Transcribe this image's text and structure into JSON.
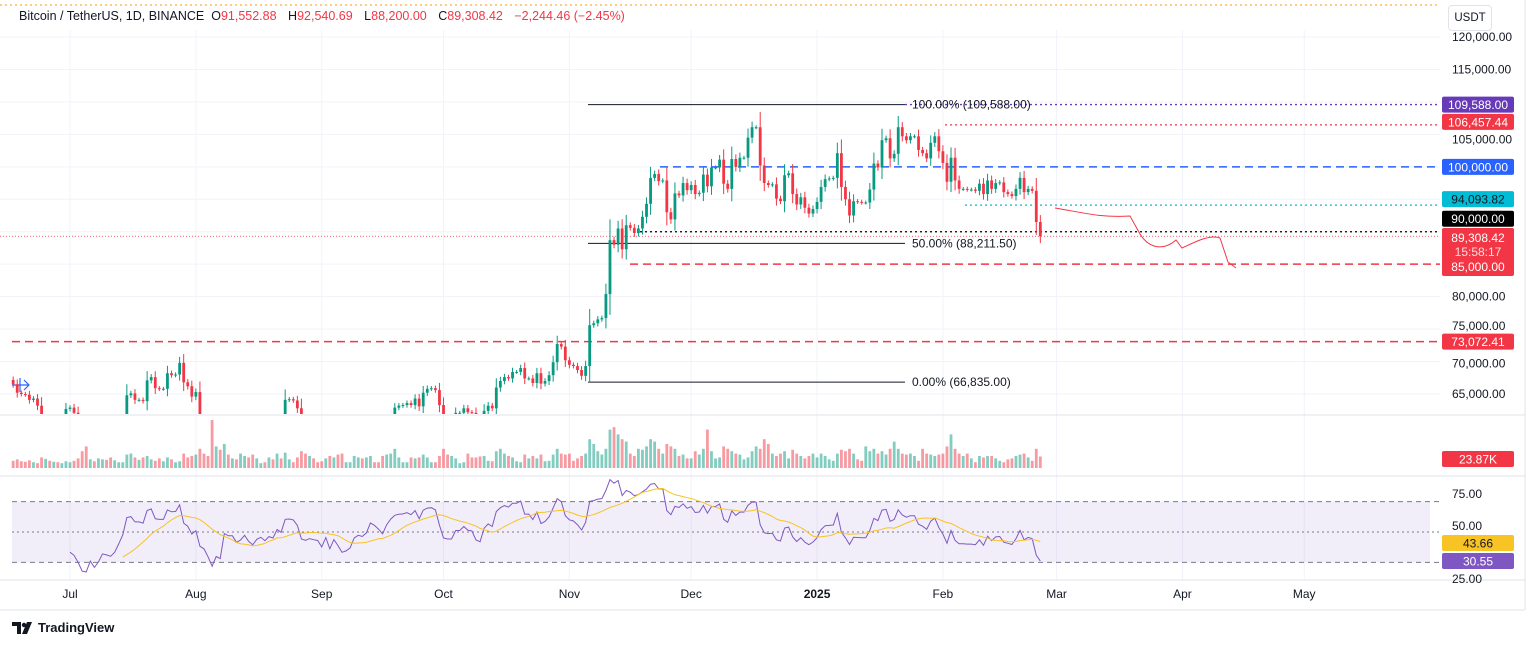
{
  "header": {
    "symbol": "Bitcoin / TetherUS, 1D, BINANCE",
    "open_label": "O",
    "open": "91,552.88",
    "high_label": "H",
    "high": "92,540.69",
    "low_label": "L",
    "low": "88,200.00",
    "close_label": "C",
    "close": "89,308.42",
    "change": "−2,244.46 (−2.45%)"
  },
  "currency_button": "USDT",
  "brand": "TradingView",
  "colors": {
    "up": "#089981",
    "down": "#f23645",
    "rsi": "#7e57c2",
    "rsi_ma": "#f7c325",
    "fib": "#131722",
    "blue": "#2962ff",
    "cyan": "#00bcd4",
    "purple": "#673ab7"
  },
  "chart_data": {
    "type": "candlestick",
    "price_axis": {
      "ticks": [
        "120,000.00",
        "115,000.00",
        "105,000.00",
        "80,000.00",
        "75,000.00",
        "70,000.00",
        "65,000.00"
      ],
      "ylim": [
        62000,
        122000
      ]
    },
    "time_axis": {
      "ticks": [
        "Jul",
        "Aug",
        "Sep",
        "Oct",
        "Nov",
        "Dec",
        "2025",
        "Feb",
        "Mar",
        "Apr",
        "May"
      ]
    },
    "months": [
      {
        "month": "2024-06",
        "start_day": 17,
        "closes": [
          66500,
          65200,
          65000,
          64900,
          64100,
          64300,
          63200,
          60300,
          61800,
          60900,
          61600,
          60300,
          60900,
          62700
        ],
        "volumes_k": [
          15,
          18,
          14,
          13,
          16,
          12,
          10,
          22,
          19,
          15,
          13,
          12,
          10,
          14
        ]
      },
      {
        "month": "2024-07",
        "start_day": 1,
        "closes": [
          62900,
          62100,
          60200,
          57000,
          56700,
          58200,
          55900,
          56700,
          58000,
          57700,
          57300,
          57900,
          59200,
          60800,
          64800,
          65100,
          64100,
          64100,
          63900,
          67100,
          67600,
          65900,
          65800,
          65800,
          68200,
          67900,
          68000,
          69800,
          66800,
          66200,
          64600
        ],
        "volumes_k": [
          12,
          15,
          20,
          35,
          45,
          18,
          14,
          20,
          18,
          17,
          22,
          16,
          12,
          12,
          28,
          30,
          22,
          17,
          22,
          25,
          18,
          15,
          20,
          14,
          22,
          18,
          12,
          14,
          30,
          22,
          25
        ]
      },
      {
        "month": "2024-08",
        "start_day": 1,
        "closes": [
          65300,
          61500,
          60700,
          58100,
          54000,
          56000,
          55100,
          61700,
          60900,
          60900,
          58700,
          59300,
          60600,
          58700,
          57500,
          58900,
          59400,
          58400,
          59400,
          59000,
          61100,
          60400,
          64100,
          64200,
          64000,
          62800,
          59400,
          59000,
          59400,
          59100,
          58900
        ],
        "volumes_k": [
          28,
          40,
          30,
          25,
          100,
          45,
          38,
          50,
          28,
          20,
          18,
          30,
          25,
          22,
          28,
          20,
          10,
          12,
          22,
          18,
          30,
          20,
          32,
          18,
          12,
          22,
          35,
          30,
          25,
          20,
          12
        ]
      },
      {
        "month": "2024-09",
        "start_day": 1,
        "closes": [
          57300,
          59100,
          56000,
          58000,
          56200,
          53900,
          54200,
          54800,
          57000,
          57600,
          57300,
          58100,
          60500,
          60000,
          59200,
          58200,
          60300,
          61800,
          62900,
          63200,
          63300,
          63600,
          63300,
          64300,
          63100,
          65200,
          65800,
          65900,
          65600,
          63300
        ],
        "volumes_k": [
          14,
          20,
          25,
          22,
          28,
          30,
          12,
          12,
          25,
          22,
          20,
          22,
          25,
          12,
          12,
          25,
          28,
          30,
          40,
          22,
          12,
          12,
          22,
          20,
          22,
          28,
          22,
          12,
          12,
          25
        ]
      },
      {
        "month": "2024-10",
        "start_day": 1,
        "closes": [
          60800,
          60600,
          60600,
          62100,
          62100,
          62800,
          62200,
          62100,
          60600,
          60300,
          62400,
          63200,
          62800,
          66000,
          67000,
          67600,
          67400,
          68400,
          68400,
          69000,
          67400,
          67400,
          66700,
          68200,
          66600,
          67000,
          67900,
          69900,
          72700,
          72300,
          70200
        ],
        "volumes_k": [
          40,
          28,
          25,
          20,
          10,
          12,
          30,
          22,
          22,
          24,
          25,
          15,
          14,
          35,
          40,
          30,
          25,
          22,
          14,
          12,
          28,
          20,
          25,
          20,
          28,
          14,
          15,
          28,
          40,
          30,
          28
        ]
      },
      {
        "month": "2024-11",
        "start_day": 1,
        "closes": [
          69500,
          69300,
          68700,
          67800,
          69300,
          75600,
          75900,
          76500,
          76700,
          80400,
          88700,
          88000,
          90500,
          87300,
          91000,
          90600,
          89800,
          90500,
          92300,
          94300,
          98300,
          98900,
          97800,
          97900,
          93000,
          91900,
          95900,
          95600,
          97500,
          96400
        ],
        "volumes_k": [
          30,
          15,
          20,
          25,
          30,
          60,
          50,
          35,
          28,
          40,
          80,
          85,
          70,
          60,
          55,
          30,
          25,
          40,
          38,
          45,
          60,
          55,
          40,
          30,
          50,
          45,
          40,
          25,
          28,
          20
        ]
      },
      {
        "month": "2024-12",
        "start_day": 1,
        "closes": [
          97200,
          95800,
          96000,
          98800,
          97000,
          99900,
          99900,
          101100,
          97400,
          96600,
          101200,
          100000,
          101400,
          101400,
          104500,
          106100,
          106100,
          100200,
          97500,
          97200,
          97300,
          95100,
          94700,
          98700,
          99000,
          95800,
          94200,
          95300,
          93700,
          92800,
          93500
        ],
        "volumes_k": [
          20,
          35,
          28,
          40,
          80,
          35,
          20,
          22,
          45,
          40,
          35,
          30,
          28,
          18,
          22,
          35,
          45,
          40,
          60,
          50,
          30,
          25,
          30,
          35,
          20,
          38,
          30,
          25,
          20,
          25,
          30
        ]
      },
      {
        "month": "2025-01",
        "start_day": 1,
        "closes": [
          94600,
          96900,
          98100,
          98200,
          98300,
          102100,
          96900,
          95000,
          92500,
          94700,
          94600,
          94500,
          94500,
          96500,
          100500,
          99900,
          104100,
          104400,
          101300,
          102000,
          106100,
          104700,
          104100,
          104700,
          104700,
          102600,
          102100,
          101300,
          103700,
          104700,
          102400
        ],
        "volumes_k": [
          22,
          30,
          25,
          18,
          15,
          30,
          38,
          35,
          40,
          30,
          18,
          15,
          45,
          35,
          40,
          30,
          35,
          28,
          40,
          55,
          40,
          30,
          28,
          30,
          25,
          15,
          40,
          30,
          28,
          25,
          28
        ]
      },
      {
        "month": "2025-02",
        "start_day": 1,
        "closes": [
          100600,
          97700,
          101400,
          97900,
          96600,
          96600,
          96500,
          96500,
          96300,
          97400,
          95800,
          97900,
          96600,
          97500,
          97600,
          96100,
          95800,
          95500,
          96600,
          98300,
          96100,
          96600,
          96300,
          91500,
          89308
        ],
        "volumes_k": [
          30,
          45,
          70,
          40,
          30,
          25,
          30,
          20,
          12,
          25,
          22,
          25,
          25,
          20,
          15,
          12,
          18,
          20,
          25,
          28,
          30,
          22,
          15,
          40,
          24
        ]
      }
    ],
    "fibonacci": [
      {
        "level": 109588,
        "label": "100.00% (109,588.00)"
      },
      {
        "level": 88211.5,
        "label": "50.00% (88,211.50)"
      },
      {
        "level": 66835,
        "label": "0.00% (66,835.00)"
      }
    ],
    "horizontal_lines": [
      {
        "price": 109588,
        "label": "109,588.00",
        "color": "#673ab7",
        "style": "dotted"
      },
      {
        "price": 106457.44,
        "label": "106,457.44",
        "color": "#f23645",
        "style": "dotted"
      },
      {
        "price": 100000,
        "label": "100,000.00",
        "color": "#2962ff",
        "style": "dashed"
      },
      {
        "price": 94093.82,
        "label": "94,093.82",
        "color": "#00bcd4",
        "style": "dotted"
      },
      {
        "price": 90000,
        "label": "90,000.00",
        "color": "#000000",
        "style": "dotted"
      },
      {
        "price": 85000,
        "label": "85,000.00",
        "color": "#f23645",
        "style": "dashed"
      },
      {
        "price": 73072.41,
        "label": "73,072.41",
        "color": "#f23645",
        "style": "dashed"
      }
    ],
    "last_price": {
      "price": 89308.42,
      "label": "89,308.42",
      "countdown": "15:58:17"
    },
    "volume": {
      "last_label": "23.87K"
    },
    "rsi": {
      "period": 14,
      "ma_period": 14,
      "ticks": [
        "75.00",
        "50.00",
        "25.00"
      ],
      "bands": [
        70,
        50,
        30
      ],
      "last_rsi_label": "30.55",
      "last_ma_label": "43.66"
    }
  }
}
